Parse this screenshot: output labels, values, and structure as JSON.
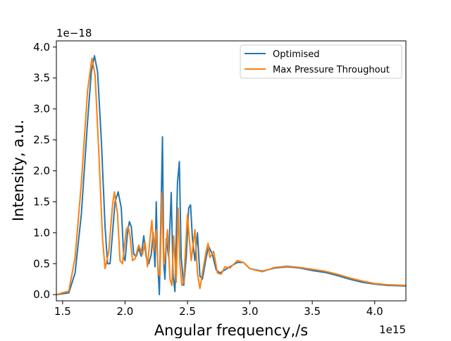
{
  "chart_data": {
    "type": "line",
    "xlabel": "Angular frequency,/s",
    "ylabel": "Intensity, a.u.",
    "x_offset_text": "1e15",
    "y_offset_text": "1e−18",
    "xlim": [
      1.45,
      4.25
    ],
    "ylim": [
      -0.1,
      4.1
    ],
    "x_ticks": [
      1.5,
      2.0,
      2.5,
      3.0,
      3.5,
      4.0
    ],
    "x_tick_labels": [
      "1.5",
      "2.0",
      "2.5",
      "3.0",
      "3.5",
      "4.0"
    ],
    "y_ticks": [
      0.0,
      0.5,
      1.0,
      1.5,
      2.0,
      2.5,
      3.0,
      3.5,
      4.0
    ],
    "y_tick_labels": [
      "0.0",
      "0.5",
      "1.0",
      "1.5",
      "2.0",
      "2.5",
      "3.0",
      "3.5",
      "4.0"
    ],
    "legend_position": "upper-right",
    "grid": false,
    "series": [
      {
        "name": "Optimised",
        "color": "#1f77b4",
        "points": [
          [
            1.45,
            0.0
          ],
          [
            1.55,
            0.03
          ],
          [
            1.6,
            0.35
          ],
          [
            1.65,
            1.3
          ],
          [
            1.7,
            2.8
          ],
          [
            1.73,
            3.6
          ],
          [
            1.755,
            3.86
          ],
          [
            1.78,
            3.6
          ],
          [
            1.81,
            2.5
          ],
          [
            1.84,
            1.1
          ],
          [
            1.86,
            0.5
          ],
          [
            1.88,
            0.5
          ],
          [
            1.92,
            1.5
          ],
          [
            1.945,
            1.66
          ],
          [
            1.97,
            1.4
          ],
          [
            1.99,
            0.6
          ],
          [
            2.0,
            0.55
          ],
          [
            2.02,
            1.0
          ],
          [
            2.035,
            1.18
          ],
          [
            2.05,
            1.1
          ],
          [
            2.07,
            0.65
          ],
          [
            2.09,
            0.62
          ],
          [
            2.11,
            0.75
          ],
          [
            2.13,
            0.62
          ],
          [
            2.15,
            0.95
          ],
          [
            2.17,
            0.6
          ],
          [
            2.19,
            0.5
          ],
          [
            2.21,
            0.65
          ],
          [
            2.225,
            1.0
          ],
          [
            2.24,
            0.45
          ],
          [
            2.25,
            1.5
          ],
          [
            2.26,
            0.6
          ],
          [
            2.275,
            0.0
          ],
          [
            2.3,
            2.55
          ],
          [
            2.31,
            0.5
          ],
          [
            2.32,
            0.25
          ],
          [
            2.33,
            0.9
          ],
          [
            2.35,
            0.6
          ],
          [
            2.37,
            1.65
          ],
          [
            2.385,
            0.3
          ],
          [
            2.4,
            0.05
          ],
          [
            2.42,
            1.8
          ],
          [
            2.435,
            2.15
          ],
          [
            2.45,
            0.6
          ],
          [
            2.47,
            0.15
          ],
          [
            2.49,
            0.6
          ],
          [
            2.51,
            1.4
          ],
          [
            2.525,
            1.45
          ],
          [
            2.54,
            0.9
          ],
          [
            2.56,
            0.55
          ],
          [
            2.58,
            1.0
          ],
          [
            2.6,
            0.3
          ],
          [
            2.62,
            0.25
          ],
          [
            2.65,
            0.6
          ],
          [
            2.67,
            0.78
          ],
          [
            2.7,
            0.65
          ],
          [
            2.73,
            0.4
          ],
          [
            2.76,
            0.35
          ],
          [
            2.8,
            0.4
          ],
          [
            2.84,
            0.45
          ],
          [
            2.9,
            0.52
          ],
          [
            2.95,
            0.52
          ],
          [
            3.0,
            0.42
          ],
          [
            3.1,
            0.38
          ],
          [
            3.2,
            0.43
          ],
          [
            3.3,
            0.45
          ],
          [
            3.4,
            0.43
          ],
          [
            3.5,
            0.39
          ],
          [
            3.6,
            0.36
          ],
          [
            3.7,
            0.31
          ],
          [
            3.8,
            0.25
          ],
          [
            3.9,
            0.2
          ],
          [
            4.0,
            0.17
          ],
          [
            4.1,
            0.15
          ],
          [
            4.25,
            0.14
          ]
        ]
      },
      {
        "name": "Max Pressure Throughout",
        "color": "#ff7f0e",
        "points": [
          [
            1.45,
            0.0
          ],
          [
            1.55,
            0.06
          ],
          [
            1.6,
            0.6
          ],
          [
            1.65,
            1.8
          ],
          [
            1.7,
            3.3
          ],
          [
            1.735,
            3.82
          ],
          [
            1.76,
            3.55
          ],
          [
            1.79,
            2.3
          ],
          [
            1.82,
            0.9
          ],
          [
            1.84,
            0.42
          ],
          [
            1.87,
            0.7
          ],
          [
            1.9,
            1.45
          ],
          [
            1.915,
            1.66
          ],
          [
            1.94,
            1.3
          ],
          [
            1.96,
            0.55
          ],
          [
            1.98,
            0.5
          ],
          [
            2.01,
            1.05
          ],
          [
            2.025,
            1.1
          ],
          [
            2.04,
            0.95
          ],
          [
            2.06,
            0.55
          ],
          [
            2.08,
            0.58
          ],
          [
            2.11,
            0.8
          ],
          [
            2.14,
            0.65
          ],
          [
            2.16,
            0.85
          ],
          [
            2.18,
            0.45
          ],
          [
            2.2,
            0.9
          ],
          [
            2.215,
            1.2
          ],
          [
            2.23,
            0.7
          ],
          [
            2.25,
            1.05
          ],
          [
            2.265,
            0.35
          ],
          [
            2.28,
            0.3
          ],
          [
            2.295,
            1.65
          ],
          [
            2.31,
            0.5
          ],
          [
            2.32,
            0.6
          ],
          [
            2.34,
            1.05
          ],
          [
            2.36,
            0.25
          ],
          [
            2.375,
            0.15
          ],
          [
            2.39,
            0.95
          ],
          [
            2.41,
            0.2
          ],
          [
            2.425,
            1.4
          ],
          [
            2.44,
            0.5
          ],
          [
            2.455,
            0.15
          ],
          [
            2.47,
            0.2
          ],
          [
            2.5,
            1.3
          ],
          [
            2.515,
            0.9
          ],
          [
            2.53,
            0.55
          ],
          [
            2.56,
            1.05
          ],
          [
            2.58,
            0.35
          ],
          [
            2.6,
            0.1
          ],
          [
            2.62,
            0.35
          ],
          [
            2.65,
            0.7
          ],
          [
            2.665,
            0.83
          ],
          [
            2.68,
            0.6
          ],
          [
            2.71,
            0.7
          ],
          [
            2.74,
            0.35
          ],
          [
            2.77,
            0.33
          ],
          [
            2.8,
            0.45
          ],
          [
            2.84,
            0.43
          ],
          [
            2.9,
            0.55
          ],
          [
            2.95,
            0.52
          ],
          [
            3.0,
            0.42
          ],
          [
            3.1,
            0.37
          ],
          [
            3.2,
            0.44
          ],
          [
            3.3,
            0.46
          ],
          [
            3.4,
            0.44
          ],
          [
            3.5,
            0.41
          ],
          [
            3.6,
            0.38
          ],
          [
            3.7,
            0.33
          ],
          [
            3.8,
            0.27
          ],
          [
            3.9,
            0.22
          ],
          [
            4.0,
            0.18
          ],
          [
            4.1,
            0.16
          ],
          [
            4.25,
            0.15
          ]
        ]
      }
    ]
  }
}
